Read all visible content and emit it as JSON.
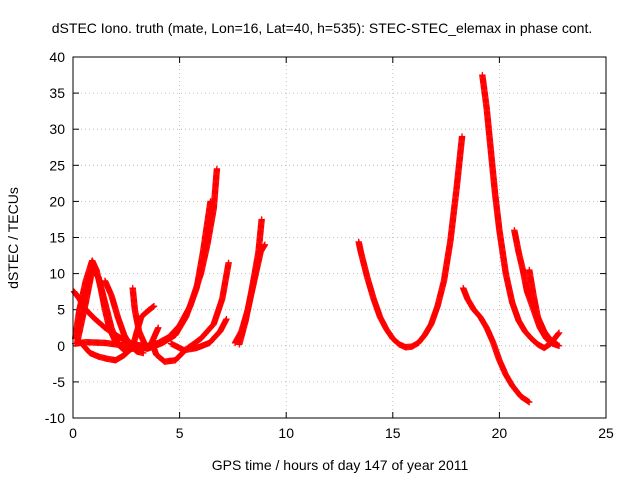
{
  "chart_data": {
    "type": "scatter",
    "title": "dSTEC Iono. truth (mate, Lon=16, Lat=40, h=535): STEC-STEC_elemax in phase cont.",
    "xlabel": "GPS time / hours of day 147 of year 2011",
    "ylabel": "dSTEC  / TECUs",
    "xlim": [
      0,
      25
    ],
    "ylim": [
      -10,
      40
    ],
    "xticks": [
      0,
      5,
      10,
      15,
      20,
      25
    ],
    "yticks": [
      -10,
      -5,
      0,
      5,
      10,
      15,
      20,
      25,
      30,
      35,
      40
    ],
    "grid": true,
    "marker": "plus",
    "color": "#ff0000",
    "series": [
      {
        "points": [
          [
            0.05,
            7.5
          ],
          [
            0.3,
            6.5
          ],
          [
            0.6,
            5.0
          ],
          [
            1.0,
            3.8
          ],
          [
            1.5,
            2.5
          ],
          [
            2.0,
            1.5
          ],
          [
            2.5,
            0.6
          ],
          [
            3.0,
            0.1
          ],
          [
            3.5,
            0.0
          ],
          [
            4.0,
            0.4
          ],
          [
            4.5,
            1.2
          ],
          [
            5.0,
            2.8
          ],
          [
            5.5,
            5.5
          ],
          [
            6.0,
            10.0
          ],
          [
            6.3,
            14.0
          ],
          [
            6.6,
            19.0
          ],
          [
            6.75,
            24.5
          ]
        ]
      },
      {
        "points": [
          [
            0.1,
            1.0
          ],
          [
            0.3,
            5.0
          ],
          [
            0.6,
            9.0
          ],
          [
            0.9,
            11.8
          ],
          [
            1.1,
            10.5
          ],
          [
            1.3,
            8.0
          ],
          [
            1.5,
            5.0
          ],
          [
            1.7,
            2.5
          ],
          [
            2.0,
            0.5
          ],
          [
            2.4,
            -0.6
          ],
          [
            2.8,
            -0.4
          ],
          [
            3.0,
            0.0
          ]
        ]
      },
      {
        "points": [
          [
            0.2,
            0.5
          ],
          [
            0.6,
            6.0
          ],
          [
            0.9,
            10.5
          ],
          [
            1.2,
            9.5
          ],
          [
            1.5,
            6.0
          ],
          [
            1.8,
            2.5
          ],
          [
            2.1,
            0.3
          ],
          [
            2.5,
            -0.7
          ]
        ]
      },
      {
        "points": [
          [
            0.5,
            0.0
          ],
          [
            0.8,
            -1.0
          ],
          [
            1.2,
            -1.5
          ],
          [
            1.6,
            -1.8
          ],
          [
            2.0,
            -2.0
          ],
          [
            2.4,
            -1.3
          ],
          [
            2.8,
            -0.2
          ],
          [
            3.0,
            2.0
          ],
          [
            3.2,
            4.0
          ],
          [
            3.5,
            4.8
          ],
          [
            3.8,
            5.5
          ]
        ]
      },
      {
        "points": [
          [
            1.5,
            9.0
          ],
          [
            1.8,
            7.0
          ],
          [
            2.1,
            4.0
          ],
          [
            2.4,
            1.5
          ],
          [
            2.7,
            0.0
          ],
          [
            3.0,
            -0.8
          ],
          [
            3.3,
            -1.0
          ]
        ]
      },
      {
        "points": [
          [
            2.8,
            8.0
          ],
          [
            2.9,
            5.0
          ],
          [
            3.1,
            2.0
          ],
          [
            3.4,
            0.0
          ]
        ]
      },
      {
        "points": [
          [
            0.1,
            0.3
          ],
          [
            0.6,
            0.5
          ],
          [
            1.5,
            0.4
          ],
          [
            2.5,
            0.0
          ],
          [
            3.5,
            -0.4
          ],
          [
            4.2,
            0.4
          ],
          [
            4.8,
            1.5
          ],
          [
            5.3,
            4.0
          ],
          [
            5.8,
            8.0
          ],
          [
            6.1,
            13.0
          ],
          [
            6.3,
            17.0
          ],
          [
            6.45,
            20.0
          ]
        ]
      },
      {
        "points": [
          [
            4.0,
            2.5
          ],
          [
            3.7,
            0.5
          ],
          [
            3.9,
            -1.2
          ],
          [
            4.3,
            -2.2
          ],
          [
            4.8,
            -2.0
          ],
          [
            5.3,
            -0.5
          ],
          [
            6.0,
            1.0
          ],
          [
            6.6,
            3.0
          ],
          [
            7.0,
            6.5
          ],
          [
            7.3,
            11.5
          ]
        ]
      },
      {
        "points": [
          [
            4.6,
            0.3
          ],
          [
            5.2,
            -0.6
          ],
          [
            5.8,
            -0.3
          ],
          [
            6.4,
            0.4
          ],
          [
            6.9,
            2.0
          ],
          [
            7.2,
            3.7
          ]
        ]
      },
      {
        "points": [
          [
            7.6,
            0.4
          ],
          [
            7.9,
            2.0
          ],
          [
            8.2,
            5.0
          ],
          [
            8.5,
            9.0
          ],
          [
            8.8,
            13.0
          ],
          [
            9.0,
            14.0
          ]
        ]
      },
      {
        "points": [
          [
            7.8,
            0.2
          ],
          [
            8.1,
            3.5
          ],
          [
            8.4,
            8.0
          ],
          [
            8.7,
            13.0
          ],
          [
            8.85,
            17.5
          ]
        ]
      },
      {
        "points": [
          [
            13.4,
            14.4
          ],
          [
            13.5,
            13.0
          ],
          [
            13.8,
            9.5
          ],
          [
            14.1,
            6.5
          ],
          [
            14.4,
            4.0
          ],
          [
            14.7,
            2.3
          ],
          [
            15.0,
            1.0
          ],
          [
            15.3,
            0.2
          ],
          [
            15.6,
            -0.2
          ],
          [
            15.9,
            -0.1
          ],
          [
            16.2,
            0.4
          ],
          [
            16.5,
            1.5
          ],
          [
            16.8,
            3.0
          ],
          [
            17.1,
            5.5
          ],
          [
            17.4,
            9.0
          ],
          [
            17.7,
            14.5
          ],
          [
            18.0,
            22.0
          ],
          [
            18.25,
            29.0
          ]
        ]
      },
      {
        "points": [
          [
            18.3,
            8.0
          ],
          [
            18.5,
            6.5
          ],
          [
            18.8,
            5.0
          ],
          [
            19.1,
            4.0
          ],
          [
            19.4,
            2.5
          ],
          [
            19.7,
            0.5
          ],
          [
            20.0,
            -2.0
          ],
          [
            20.3,
            -4.0
          ],
          [
            20.6,
            -5.5
          ],
          [
            21.0,
            -7.0
          ],
          [
            21.4,
            -7.8
          ]
        ]
      },
      {
        "points": [
          [
            19.2,
            37.5
          ],
          [
            19.4,
            33.0
          ],
          [
            19.6,
            27.0
          ],
          [
            19.8,
            21.0
          ],
          [
            20.0,
            16.0
          ],
          [
            20.3,
            10.0
          ],
          [
            20.6,
            6.0
          ],
          [
            20.9,
            3.5
          ],
          [
            21.2,
            2.0
          ],
          [
            21.5,
            1.0
          ],
          [
            21.8,
            0.2
          ],
          [
            22.1,
            -0.3
          ],
          [
            22.4,
            0.3
          ],
          [
            22.8,
            1.8
          ]
        ]
      },
      {
        "points": [
          [
            20.7,
            16.0
          ],
          [
            20.9,
            13.0
          ],
          [
            21.1,
            10.5
          ],
          [
            21.3,
            7.5
          ],
          [
            21.6,
            5.0
          ],
          [
            21.9,
            2.5
          ],
          [
            22.2,
            1.0
          ],
          [
            22.5,
            0.3
          ],
          [
            22.8,
            0.0
          ]
        ]
      },
      {
        "points": [
          [
            21.4,
            10.5
          ],
          [
            21.6,
            7.0
          ],
          [
            21.8,
            4.0
          ],
          [
            22.1,
            2.0
          ],
          [
            22.4,
            0.8
          ],
          [
            22.7,
            0.2
          ]
        ]
      }
    ]
  }
}
